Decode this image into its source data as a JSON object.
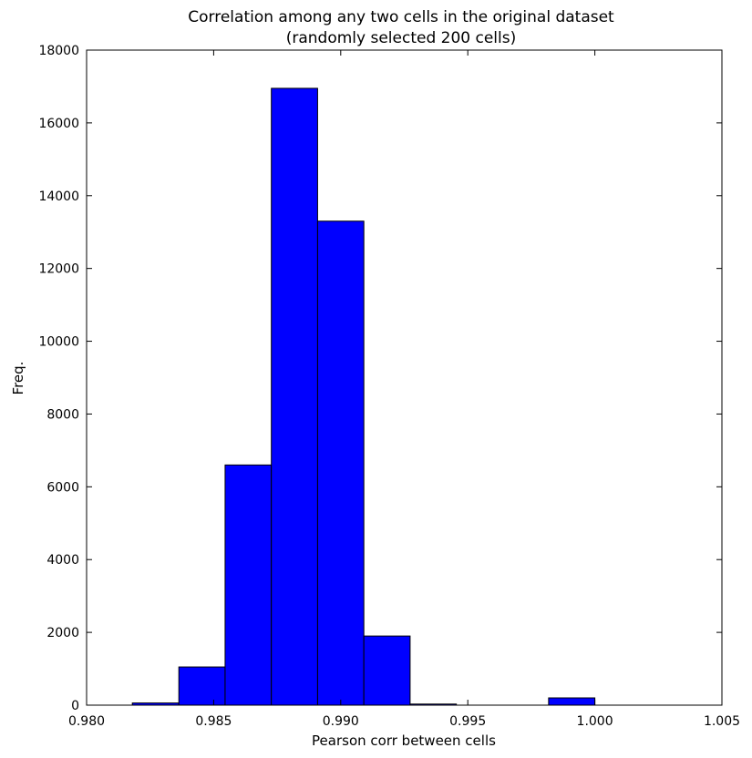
{
  "chart_data": {
    "type": "bar",
    "title": "Correlation among any two cells in the original dataset",
    "subtitle": "(randomly selected 200 cells)",
    "xlabel": "Pearson corr between cells",
    "ylabel": "Freq.",
    "xlim": [
      0.98,
      1.005
    ],
    "ylim": [
      0,
      18000
    ],
    "xticks": [
      "0.980",
      "0.985",
      "0.990",
      "0.995",
      "1.000",
      "1.005"
    ],
    "yticks": [
      "0",
      "2000",
      "4000",
      "6000",
      "8000",
      "10000",
      "12000",
      "14000",
      "16000",
      "18000"
    ],
    "grid": false,
    "bar_color": "#0000ff",
    "edge_color": "#000000",
    "bins": [
      {
        "x0": 0.9818,
        "x1": 0.98363,
        "value": 60
      },
      {
        "x0": 0.98363,
        "x1": 0.98545,
        "value": 1050
      },
      {
        "x0": 0.98545,
        "x1": 0.98727,
        "value": 6600
      },
      {
        "x0": 0.98727,
        "x1": 0.98909,
        "value": 16950
      },
      {
        "x0": 0.98909,
        "x1": 0.99091,
        "value": 13300
      },
      {
        "x0": 0.99091,
        "x1": 0.99273,
        "value": 1900
      },
      {
        "x0": 0.99273,
        "x1": 0.99455,
        "value": 30
      },
      {
        "x0": 0.99455,
        "x1": 0.99636,
        "value": 0
      },
      {
        "x0": 0.99636,
        "x1": 0.99818,
        "value": 0
      },
      {
        "x0": 0.99818,
        "x1": 1.0,
        "value": 200
      }
    ]
  }
}
